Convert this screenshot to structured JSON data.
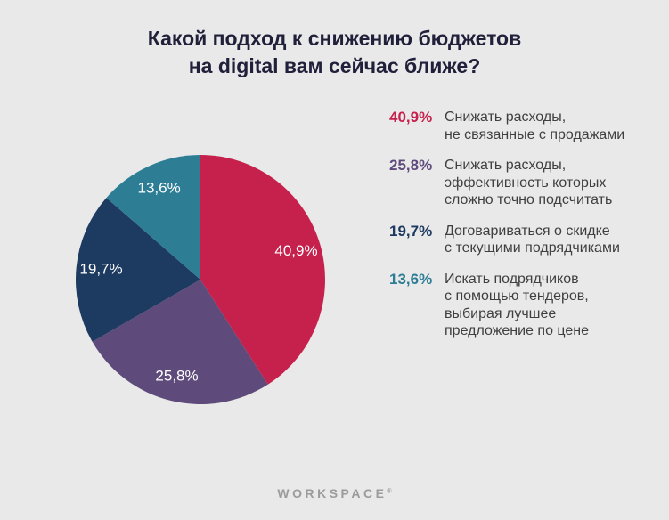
{
  "page": {
    "background": "#e9e9e9"
  },
  "title": {
    "line1": "Какой подход к снижению бюджетов",
    "line2": "на digital вам сейчас ближе?"
  },
  "chart_data": {
    "type": "pie",
    "title": "Какой подход к снижению бюджетов на digital вам сейчас ближе?",
    "direction": "clockwise",
    "start_angle_deg": 0,
    "label_radius_ratio": 0.8,
    "slices": [
      {
        "label": "Снижать расходы, не связанные с продажами",
        "value": 40.9,
        "display": "40,9%",
        "color": "#c6204d"
      },
      {
        "label": "Снижать расходы, эффективность которых сложно точно подсчитать",
        "value": 25.8,
        "display": "25,8%",
        "color": "#5e4b7b"
      },
      {
        "label": "Договариваться о скидке с текущими подрядчиками",
        "value": 19.7,
        "display": "19,7%",
        "color": "#1d3a60"
      },
      {
        "label": "Искать подрядчиков с помощью тендеров, выбирая лучшее предложение по цене",
        "value": 13.6,
        "display": "13,6%",
        "color": "#2d7e95"
      }
    ]
  },
  "legend": {
    "items": [
      {
        "percent": "40,9%",
        "color": "#c6204d",
        "text": "Снижать расходы,\nне связанные с продажами"
      },
      {
        "percent": "25,8%",
        "color": "#5e4b7b",
        "text": "Снижать расходы,\nэффективность которых\nсложно точно подсчитать"
      },
      {
        "percent": "19,7%",
        "color": "#1d3a60",
        "text": "Договариваться о скидке\nс текущими подрядчиками"
      },
      {
        "percent": "13,6%",
        "color": "#2d7e95",
        "text": "Искать подрядчиков\nс помощью тендеров,\nвыбирая лучшее\nпредложение по цене"
      }
    ]
  },
  "footer": {
    "logo": "WORKSPACE",
    "mark": "®"
  }
}
